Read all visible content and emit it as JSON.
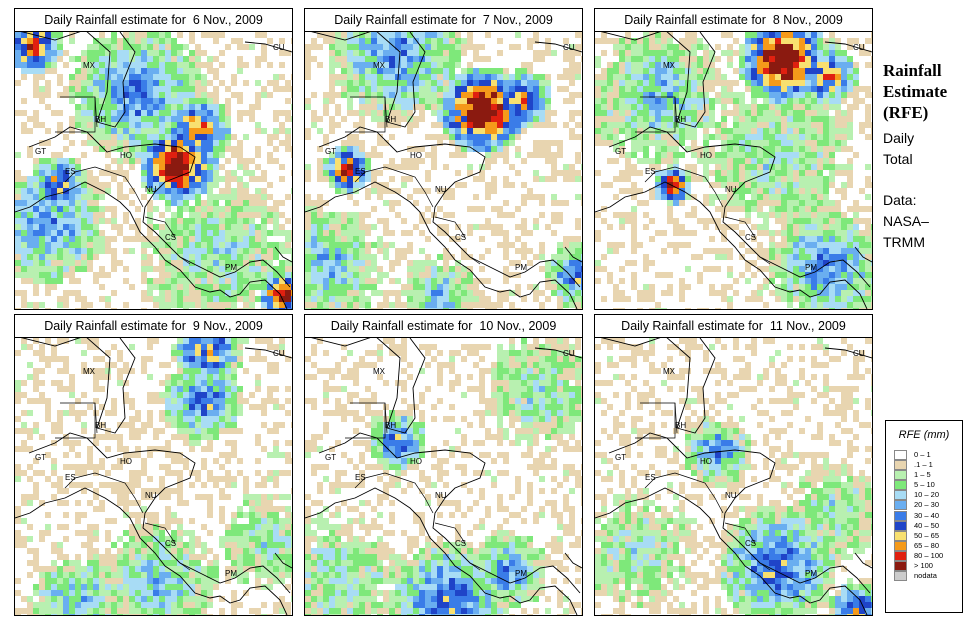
{
  "panels": [
    {
      "title": "Daily Rainfall estimate for  6 Nov., 2009",
      "seed": 11,
      "profile": "p1"
    },
    {
      "title": "Daily Rainfall estimate for  7 Nov., 2009",
      "seed": 23,
      "profile": "p2"
    },
    {
      "title": "Daily Rainfall estimate for  8 Nov., 2009",
      "seed": 37,
      "profile": "p3"
    },
    {
      "title": "Daily Rainfall estimate for  9 Nov., 2009",
      "seed": 41,
      "profile": "p4"
    },
    {
      "title": "Daily Rainfall estimate for  10 Nov., 2009",
      "seed": 53,
      "profile": "p5"
    },
    {
      "title": "Daily Rainfall estimate for  11 Nov., 2009",
      "seed": 67,
      "profile": "p6"
    }
  ],
  "country_labels": [
    "MX",
    "BH",
    "GT",
    "HO",
    "ES",
    "NU",
    "CS",
    "PM",
    "CU"
  ],
  "side": {
    "title_line1": "Rainfall",
    "title_line2": "Estimate",
    "title_line3": "(RFE)",
    "text1_line1": "Daily",
    "text1_line2": "Total",
    "text2_line1": "Data:",
    "text2_line2": "NASA–",
    "text2_line3": "TRMM"
  },
  "legend": {
    "title": "RFE (mm)",
    "items": [
      {
        "label": "0 – 1",
        "color": "#ffffff"
      },
      {
        "label": ".1 – 1",
        "color": "#e8d5b0"
      },
      {
        "label": "1 – 5",
        "color": "#b8f0b0"
      },
      {
        "label": "5 – 10",
        "color": "#7ee87a"
      },
      {
        "label": "10 – 20",
        "color": "#a8dcf5"
      },
      {
        "label": "20 – 30",
        "color": "#6aaef0"
      },
      {
        "label": "30 – 40",
        "color": "#3a7ce8"
      },
      {
        "label": "40 – 50",
        "color": "#1f44c8"
      },
      {
        "label": "50 – 65",
        "color": "#f8e070"
      },
      {
        "label": "65 – 80",
        "color": "#f59a1a"
      },
      {
        "label": "80 – 100",
        "color": "#e02010"
      },
      {
        "label": "> 100",
        "color": "#8b1a10"
      },
      {
        "label": "nodata",
        "color": "#cccccc"
      }
    ]
  }
}
